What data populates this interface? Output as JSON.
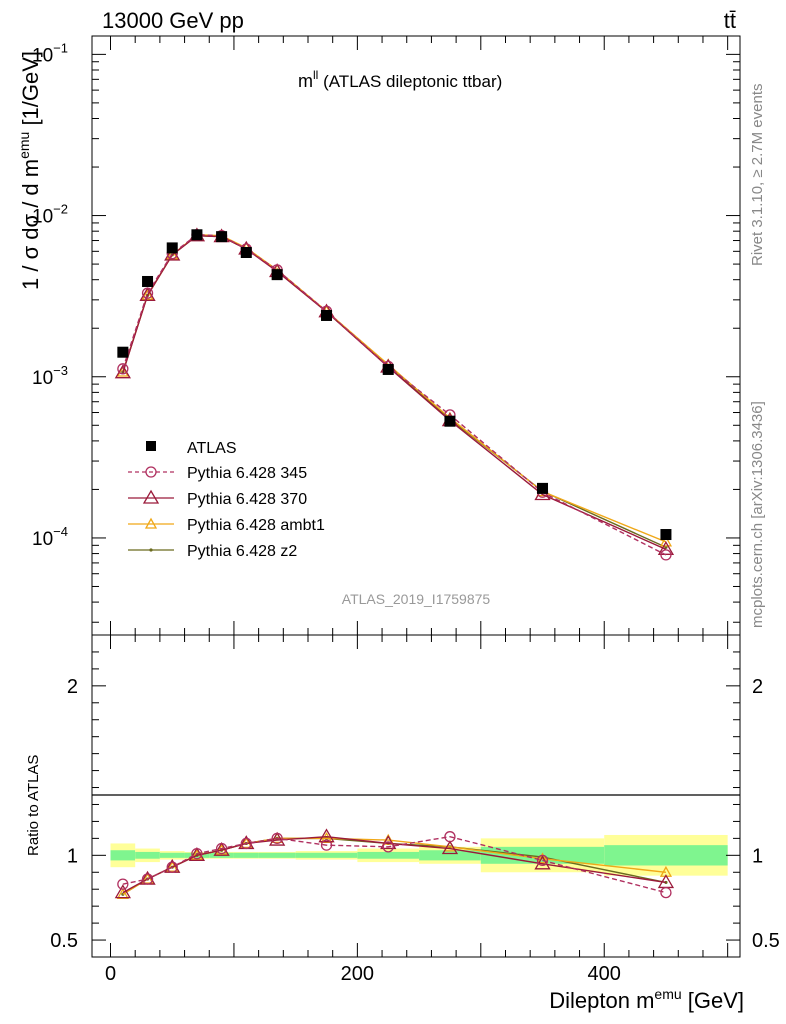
{
  "header": {
    "energy_label": "13000 GeV pp",
    "process_label": "tt̄"
  },
  "side_labels": {
    "rivet": "Rivet 3.1.10, ≥ 2.7M events",
    "mcplots": "mcplots.cern.ch [arXiv:1306.3436]"
  },
  "chart_data": [
    {
      "type": "line",
      "title_main": "m",
      "title_sup": "ll",
      "title_rest": " (ATLAS dileptonic ttbar)",
      "analysis_id": "ATLAS_2019_I1759875",
      "ylabel_prefix": "1 / σ  dσ / d m",
      "ylabel_sup": "emu",
      "ylabel_suffix": " [1/GeV]",
      "yscale": "log",
      "ylim": [
        2.5e-05,
        0.13
      ],
      "xlim": [
        -15,
        510
      ],
      "y_ticks": [
        {
          "value": 0.1,
          "label": "10",
          "exp": "−1"
        },
        {
          "value": 0.01,
          "label": "10",
          "exp": "−2"
        },
        {
          "value": 0.001,
          "label": "10",
          "exp": "−3"
        },
        {
          "value": 0.0001,
          "label": "10",
          "exp": "−4"
        }
      ],
      "x": [
        10,
        30,
        50,
        70,
        90,
        110,
        135,
        175,
        225,
        275,
        350,
        450
      ],
      "legend_position": "left-middle",
      "series": [
        {
          "name": "ATLAS",
          "style": "data",
          "color": "#000000",
          "values": [
            0.00142,
            0.0039,
            0.0063,
            0.0076,
            0.0074,
            0.0059,
            0.0043,
            0.0024,
            0.00111,
            0.00053,
            0.000203,
            0.000105
          ]
        },
        {
          "name": "Pythia 6.428 345",
          "style": "dashed-circle",
          "color": "#b03060",
          "values": [
            0.00112,
            0.0033,
            0.0058,
            0.0076,
            0.0075,
            0.0062,
            0.0046,
            0.00255,
            0.00116,
            0.00058,
            0.000192,
            7.85e-05
          ]
        },
        {
          "name": "Pythia 6.428 370",
          "style": "solid-triangle",
          "color": "#9a1a3a",
          "values": [
            0.00106,
            0.0032,
            0.0057,
            0.0075,
            0.0074,
            0.0062,
            0.0045,
            0.00253,
            0.00115,
            0.000535,
            0.000186,
            8.5e-05
          ]
        },
        {
          "name": "Pythia 6.428 ambt1",
          "style": "solid-smalltriangle",
          "color": "#f0a818",
          "values": [
            0.00107,
            0.0032,
            0.0057,
            0.0076,
            0.0075,
            0.0063,
            0.0046,
            0.00255,
            0.00119,
            0.000555,
            0.000194,
            9.45e-05
          ]
        },
        {
          "name": "Pythia 6.428 z2",
          "style": "solid-dot",
          "color": "#6b6b1f",
          "values": [
            0.00107,
            0.0032,
            0.0057,
            0.0075,
            0.0074,
            0.0062,
            0.0046,
            0.00253,
            0.00116,
            0.000545,
            0.000195,
            8.75e-05
          ]
        }
      ]
    },
    {
      "type": "line",
      "ylabel": "Ratio to ATLAS",
      "xlabel_prefix": "Dilepton m",
      "xlabel_sup": "emu",
      "xlabel_suffix": " [GeV]",
      "ylim": [
        0.4,
        2.3
      ],
      "xlim": [
        -15,
        510
      ],
      "y_ticks": [
        {
          "value": 2,
          "label": "2"
        },
        {
          "value": 1,
          "label": "1"
        },
        {
          "value": 0.5,
          "label": "0.5"
        }
      ],
      "x_ticks": [
        {
          "value": 0,
          "label": "0"
        },
        {
          "value": 200,
          "label": "200"
        },
        {
          "value": 400,
          "label": "400"
        }
      ],
      "bin_edges": [
        0,
        20,
        40,
        60,
        80,
        100,
        120,
        150,
        200,
        250,
        300,
        400,
        500
      ],
      "band_inner": [
        0.03,
        0.02,
        0.015,
        0.015,
        0.015,
        0.015,
        0.015,
        0.015,
        0.02,
        0.03,
        0.05,
        0.06
      ],
      "band_outer": [
        0.07,
        0.04,
        0.025,
        0.02,
        0.02,
        0.02,
        0.02,
        0.025,
        0.04,
        0.05,
        0.1,
        0.12
      ],
      "x": [
        10,
        30,
        50,
        70,
        90,
        110,
        135,
        175,
        225,
        275,
        350,
        450
      ],
      "series": [
        {
          "name": "Pythia 6.428 345",
          "style": "dashed-circle",
          "color": "#b03060",
          "values": [
            0.83,
            0.86,
            0.93,
            1.01,
            1.04,
            1.07,
            1.1,
            1.06,
            1.05,
            1.11,
            0.97,
            0.78
          ]
        },
        {
          "name": "Pythia 6.428 370",
          "style": "solid-triangle",
          "color": "#9a1a3a",
          "values": [
            0.78,
            0.86,
            0.93,
            1.0,
            1.03,
            1.07,
            1.09,
            1.11,
            1.07,
            1.04,
            0.95,
            0.84
          ]
        },
        {
          "name": "Pythia 6.428 ambt1",
          "style": "solid-smalltriangle",
          "color": "#f0a818",
          "values": [
            0.77,
            0.86,
            0.93,
            1.0,
            1.03,
            1.07,
            1.1,
            1.1,
            1.09,
            1.05,
            0.98,
            0.9
          ]
        },
        {
          "name": "Pythia 6.428 z2",
          "style": "solid-dot",
          "color": "#6b6b1f",
          "values": [
            0.77,
            0.86,
            0.93,
            1.0,
            1.03,
            1.07,
            1.1,
            1.1,
            1.07,
            1.05,
            0.99,
            0.84
          ]
        }
      ]
    }
  ]
}
